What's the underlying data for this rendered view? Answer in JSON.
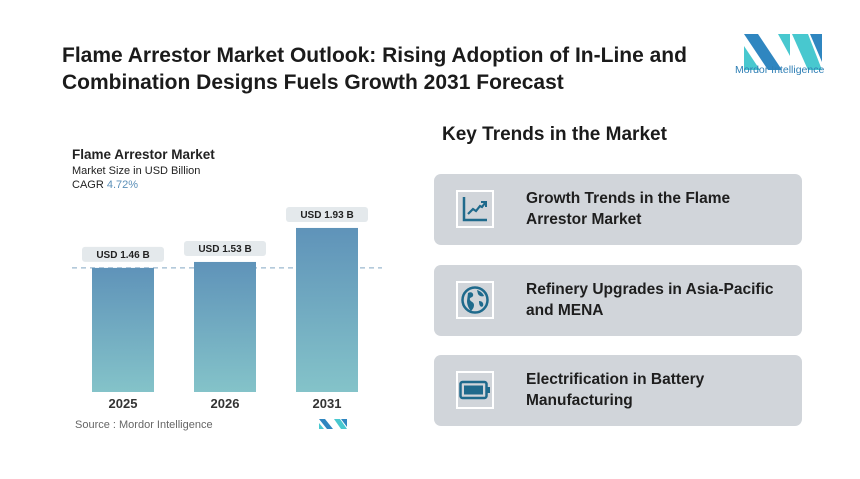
{
  "header": {
    "title": "Flame Arrestor Market Outlook: Rising Adoption of In-Line and Combination Designs Fuels Growth 2031 Forecast",
    "logo_text": "Mordor Intelligence"
  },
  "chart_data": {
    "type": "bar",
    "title": "Flame Arrestor Market",
    "subtitle": "Market Size in USD Billion",
    "cagr_label": "CAGR",
    "cagr_value": "4.72%",
    "categories": [
      "2025",
      "2026",
      "2031"
    ],
    "values": [
      1.46,
      1.53,
      1.93
    ],
    "data_labels": [
      "USD 1.46 B",
      "USD 1.53 B",
      "USD 1.93 B"
    ],
    "ylim": [
      0,
      2.2
    ],
    "grid": false,
    "reference_line": 1.46,
    "colors": {
      "bar_top": "#5f93b9",
      "bar_bottom": "#84c3c9",
      "label_bg": "#e4e9ec"
    }
  },
  "source": "Source :  Mordor Intelligence",
  "trends": {
    "heading": "Key Trends in the Market",
    "items": [
      {
        "icon": "line-chart-icon",
        "label": "Growth Trends in the Flame Arrestor Market"
      },
      {
        "icon": "globe-icon",
        "label": "Refinery Upgrades in Asia-Pacific and MENA"
      },
      {
        "icon": "battery-icon",
        "label": "Electrification in Battery Manufacturing"
      }
    ]
  },
  "colors": {
    "accent": "#1f6a8c",
    "card_bg": "#d1d5da"
  }
}
